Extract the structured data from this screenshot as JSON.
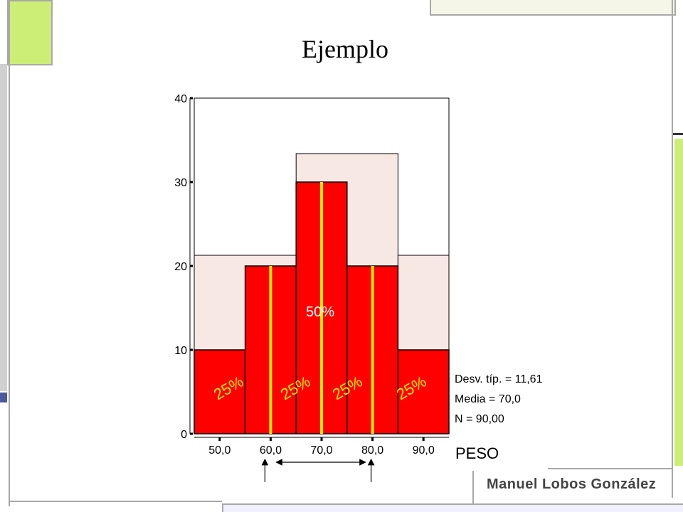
{
  "slide": {
    "title": "Ejemplo",
    "author": "Manuel Lobos González"
  },
  "colors": {
    "bar": "#ff0000",
    "highlight": "#f7e8e4",
    "divider": "#ffee00",
    "decor_green": "#ccee77",
    "decor_gray": "#c8c8c8",
    "decor_blue": "#4a5a9a"
  },
  "chart_data": {
    "type": "bar",
    "title": "",
    "xlabel": "PESO",
    "ylabel": "",
    "ylim": [
      0,
      40
    ],
    "yticks": [
      "0",
      "10",
      "20",
      "30",
      "40"
    ],
    "xticks": [
      "50,0",
      "60,0",
      "70,0",
      "80,0",
      "90,0"
    ],
    "bin_edges": [
      45,
      55,
      65,
      75,
      85,
      95
    ],
    "values": [
      10,
      20,
      30,
      20,
      10
    ],
    "stats": [
      "Desv. típ. = 11,61",
      "Media = 70,0",
      "N = 90,00"
    ],
    "annotations": {
      "quartile_labels": [
        "25%",
        "25%",
        "25%",
        "25%"
      ],
      "center_label": "50%"
    }
  }
}
